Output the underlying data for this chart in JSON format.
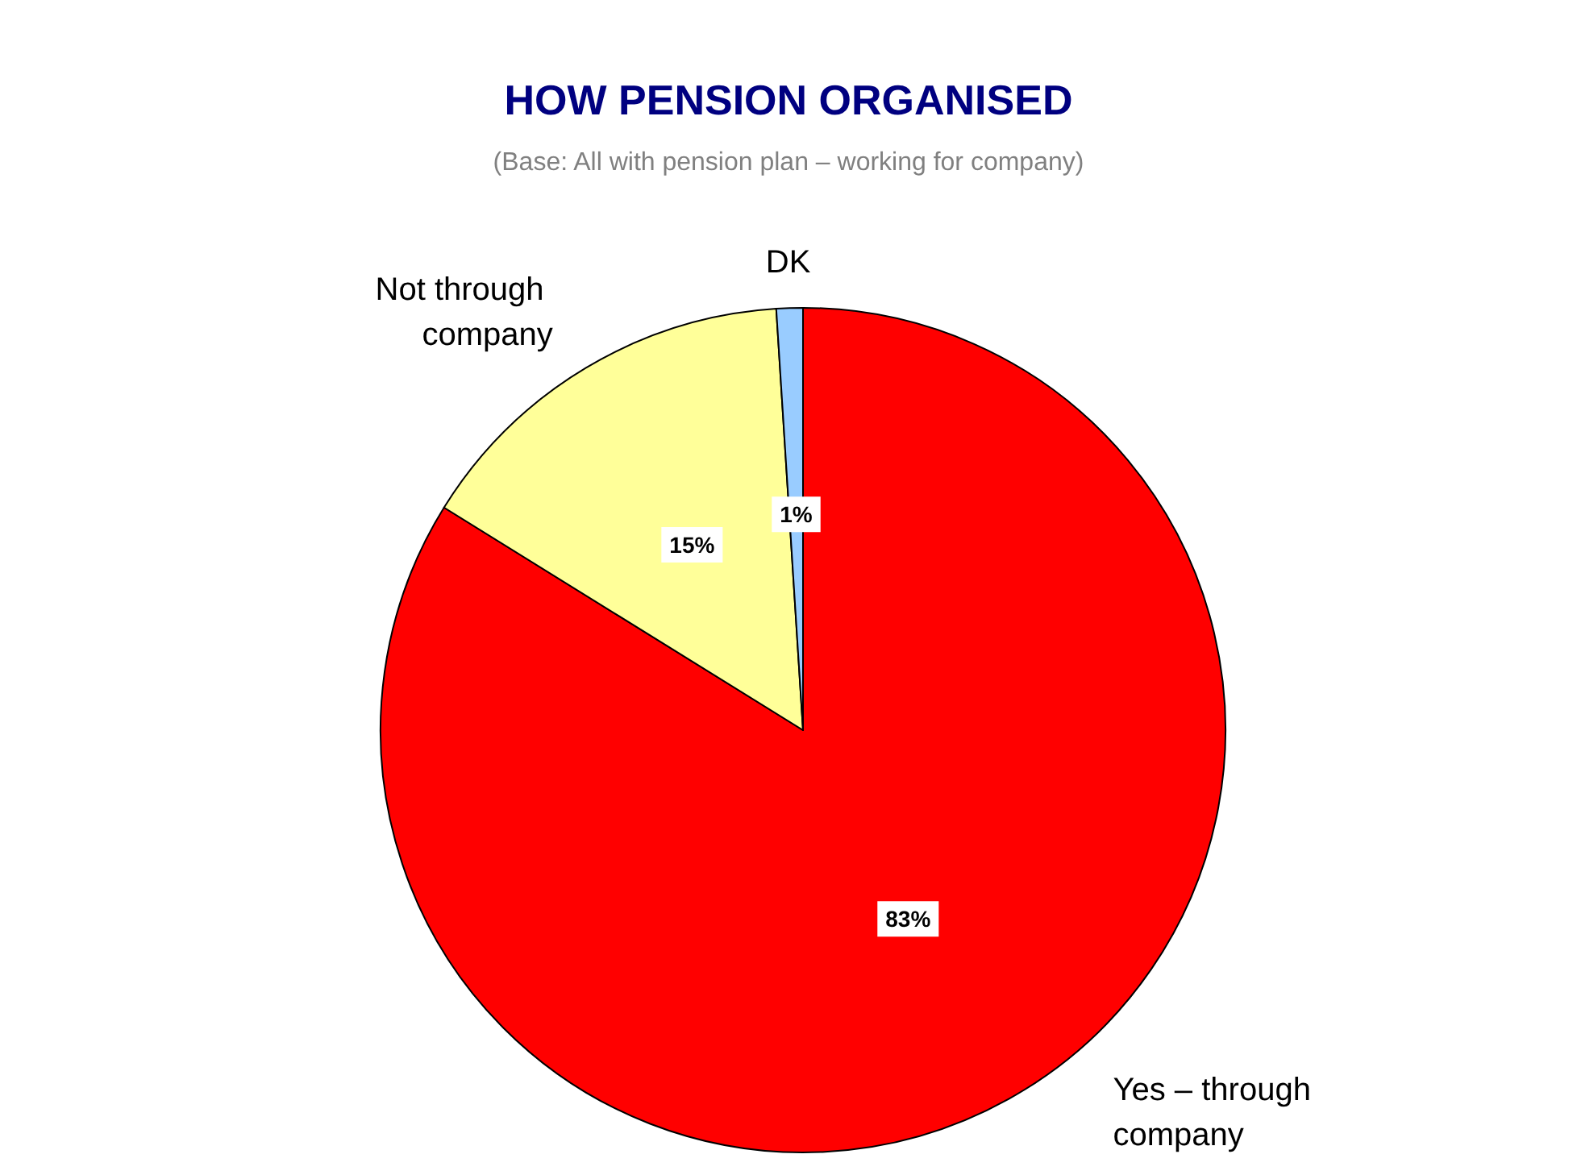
{
  "chart_data": {
    "type": "pie",
    "title": "HOW PENSION ORGANISED",
    "subtitle": "(Base: All with pension plan – working for company)",
    "categories": [
      "Yes – through company",
      "Not through company",
      "DK"
    ],
    "values": [
      83,
      15,
      1
    ],
    "colors": [
      "#ff0000",
      "#ffff99",
      "#99ccff"
    ],
    "value_labels": [
      "83%",
      "15%",
      "1%"
    ],
    "legend": false
  }
}
